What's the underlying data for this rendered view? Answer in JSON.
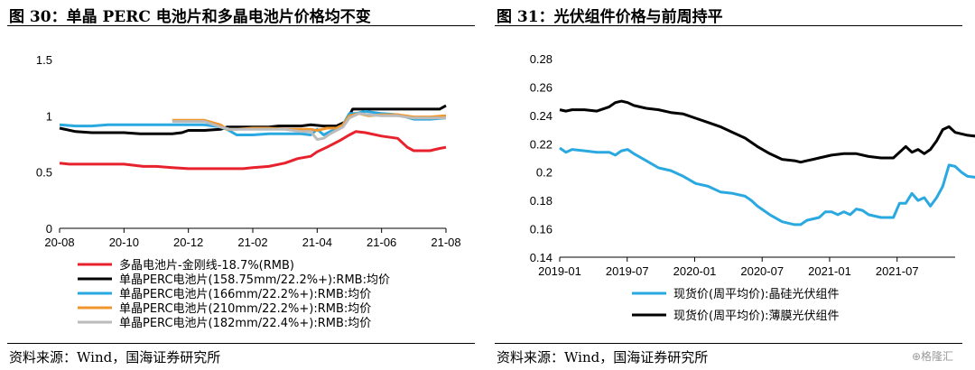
{
  "left": {
    "title": "图 30：单晶 PERC 电池片和多晶电池片价格均不变",
    "source": "资料来源：Wind，国海证券研究所",
    "chart_data": {
      "type": "line",
      "ylim": [
        0,
        1.5
      ],
      "yticks": [
        "0",
        "0.5",
        "1",
        "1.5"
      ],
      "xticks": [
        "20-08",
        "20-10",
        "20-12",
        "21-02",
        "21-04",
        "21-06",
        "21-08"
      ],
      "xlim": [
        0,
        12
      ],
      "series": [
        {
          "name": "多晶电池片-金刚线-18.7%(RMB)",
          "color": "#e8222c",
          "points": [
            [
              0,
              0.58
            ],
            [
              0.3,
              0.57
            ],
            [
              1,
              0.57
            ],
            [
              2,
              0.57
            ],
            [
              2.6,
              0.55
            ],
            [
              3,
              0.55
            ],
            [
              3.5,
              0.54
            ],
            [
              4,
              0.53
            ],
            [
              5,
              0.53
            ],
            [
              5.7,
              0.53
            ],
            [
              6,
              0.54
            ],
            [
              6.5,
              0.55
            ],
            [
              7,
              0.58
            ],
            [
              7.4,
              0.62
            ],
            [
              7.8,
              0.64
            ],
            [
              8,
              0.68
            ],
            [
              8.3,
              0.72
            ],
            [
              8.7,
              0.78
            ],
            [
              9,
              0.83
            ],
            [
              9.2,
              0.86
            ],
            [
              9.5,
              0.85
            ],
            [
              10,
              0.82
            ],
            [
              10.5,
              0.8
            ],
            [
              10.8,
              0.72
            ],
            [
              11,
              0.69
            ],
            [
              11.5,
              0.69
            ],
            [
              11.8,
              0.71
            ],
            [
              12,
              0.72
            ]
          ]
        },
        {
          "name": "单晶PERC电池片(158.75mm/22.2%+):RMB:均价",
          "color": "#000000",
          "points": [
            [
              0,
              0.89
            ],
            [
              0.5,
              0.86
            ],
            [
              1,
              0.85
            ],
            [
              2,
              0.85
            ],
            [
              2.5,
              0.84
            ],
            [
              3,
              0.84
            ],
            [
              3.5,
              0.84
            ],
            [
              3.8,
              0.85
            ],
            [
              4,
              0.87
            ],
            [
              4.5,
              0.87
            ],
            [
              5,
              0.88
            ],
            [
              5.2,
              0.9
            ],
            [
              6,
              0.9
            ],
            [
              6.5,
              0.9
            ],
            [
              6.8,
              0.91
            ],
            [
              7.5,
              0.91
            ],
            [
              7.8,
              0.92
            ],
            [
              8.2,
              0.91
            ],
            [
              8.6,
              0.91
            ],
            [
              8.9,
              0.95
            ],
            [
              9.1,
              1.06
            ],
            [
              9.4,
              1.06
            ],
            [
              10,
              1.06
            ],
            [
              11,
              1.06
            ],
            [
              11.5,
              1.06
            ],
            [
              11.8,
              1.06
            ],
            [
              12,
              1.09
            ]
          ]
        },
        {
          "name": "单晶PERC电池片(166mm/22.2%+):RMB:均价",
          "color": "#2aa8e0",
          "points": [
            [
              0,
              0.92
            ],
            [
              0.5,
              0.91
            ],
            [
              1,
              0.91
            ],
            [
              1.5,
              0.92
            ],
            [
              2,
              0.92
            ],
            [
              3,
              0.92
            ],
            [
              4,
              0.92
            ],
            [
              4.5,
              0.92
            ],
            [
              5,
              0.9
            ],
            [
              5.2,
              0.88
            ],
            [
              5.5,
              0.83
            ],
            [
              6,
              0.83
            ],
            [
              6.5,
              0.84
            ],
            [
              7,
              0.84
            ],
            [
              7.5,
              0.84
            ],
            [
              7.8,
              0.83
            ],
            [
              8,
              0.88
            ],
            [
              8.2,
              0.83
            ],
            [
              8.4,
              0.86
            ],
            [
              8.6,
              0.88
            ],
            [
              8.8,
              0.92
            ],
            [
              9,
              1.02
            ],
            [
              9.2,
              1.02
            ],
            [
              9.5,
              1.04
            ],
            [
              10,
              1.02
            ],
            [
              10.5,
              1.01
            ],
            [
              11,
              0.97
            ],
            [
              11.5,
              0.97
            ],
            [
              12,
              0.98
            ]
          ]
        },
        {
          "name": "单晶PERC电池片(210mm/22.2%+):RMB:均价",
          "color": "#f0962f",
          "points": [
            [
              3.5,
              0.96
            ],
            [
              4,
              0.96
            ],
            [
              4.5,
              0.96
            ],
            [
              5,
              0.92
            ],
            [
              5.2,
              0.88
            ],
            [
              5.5,
              0.88
            ],
            [
              6,
              0.89
            ],
            [
              6.5,
              0.89
            ],
            [
              7,
              0.88
            ],
            [
              7.5,
              0.88
            ],
            [
              7.8,
              0.88
            ],
            [
              8,
              0.87
            ],
            [
              8.3,
              0.89
            ],
            [
              8.6,
              0.89
            ],
            [
              8.8,
              0.92
            ],
            [
              9,
              1.0
            ],
            [
              9.3,
              1.02
            ],
            [
              9.6,
              1.0
            ],
            [
              10,
              1.01
            ],
            [
              10.5,
              1.01
            ],
            [
              11,
              0.99
            ],
            [
              11.5,
              0.99
            ],
            [
              12,
              1.0
            ]
          ]
        },
        {
          "name": "单晶PERC电池片(182mm/22.4%+):RMB:均价",
          "color": "#bbbbbb",
          "points": [
            [
              3.5,
              0.95
            ],
            [
              4,
              0.95
            ],
            [
              4.5,
              0.95
            ],
            [
              5,
              0.9
            ],
            [
              5.3,
              0.88
            ],
            [
              5.5,
              0.88
            ],
            [
              6,
              0.88
            ],
            [
              6.5,
              0.88
            ],
            [
              7,
              0.88
            ],
            [
              7.5,
              0.86
            ],
            [
              7.8,
              0.86
            ],
            [
              8,
              0.79
            ],
            [
              8.2,
              0.8
            ],
            [
              8.4,
              0.84
            ],
            [
              8.6,
              0.87
            ],
            [
              8.8,
              0.9
            ],
            [
              9,
              0.98
            ],
            [
              9.3,
              1.02
            ],
            [
              9.6,
              1.01
            ],
            [
              10,
              1.0
            ],
            [
              10.5,
              1.0
            ],
            [
              11,
              0.98
            ],
            [
              11.5,
              0.98
            ],
            [
              12,
              0.98
            ]
          ]
        }
      ]
    }
  },
  "right": {
    "title": "图 31：光伏组件价格与前周持平",
    "source": "资料来源：Wind，国海证券研究所",
    "chart_data": {
      "type": "line",
      "ylim": [
        0.14,
        0.28
      ],
      "yticks": [
        "0.14",
        "0.16",
        "0.18",
        "0.2",
        "0.22",
        "0.24",
        "0.26",
        "0.28"
      ],
      "xticks": [
        "2019-01",
        "2019-07",
        "2020-01",
        "2020-07",
        "2021-01",
        "2021-07"
      ],
      "xlim": [
        0,
        32
      ],
      "series": [
        {
          "name": "现货价(周平均价):晶硅光伏组件",
          "color": "#2aa8e0",
          "points": [
            [
              0,
              0.217
            ],
            [
              0.5,
              0.214
            ],
            [
              1,
              0.216
            ],
            [
              2,
              0.215
            ],
            [
              3,
              0.214
            ],
            [
              4,
              0.214
            ],
            [
              4.5,
              0.212
            ],
            [
              5,
              0.215
            ],
            [
              5.5,
              0.216
            ],
            [
              6,
              0.213
            ],
            [
              7,
              0.208
            ],
            [
              8,
              0.203
            ],
            [
              9,
              0.201
            ],
            [
              10,
              0.197
            ],
            [
              11,
              0.192
            ],
            [
              12,
              0.19
            ],
            [
              13,
              0.186
            ],
            [
              14,
              0.185
            ],
            [
              15,
              0.183
            ],
            [
              15.5,
              0.18
            ],
            [
              16,
              0.176
            ],
            [
              17,
              0.17
            ],
            [
              18,
              0.165
            ],
            [
              19,
              0.163
            ],
            [
              19.5,
              0.163
            ],
            [
              20,
              0.166
            ],
            [
              21,
              0.168
            ],
            [
              21.5,
              0.172
            ],
            [
              22,
              0.172
            ],
            [
              22.5,
              0.17
            ],
            [
              23,
              0.172
            ],
            [
              23.5,
              0.17
            ],
            [
              24,
              0.174
            ],
            [
              24.5,
              0.173
            ],
            [
              25,
              0.17
            ],
            [
              26,
              0.168
            ],
            [
              27,
              0.168
            ],
            [
              27.5,
              0.178
            ],
            [
              28,
              0.178
            ],
            [
              28.5,
              0.185
            ],
            [
              29,
              0.18
            ],
            [
              29.5,
              0.182
            ],
            [
              30,
              0.176
            ],
            [
              30.5,
              0.182
            ],
            [
              31,
              0.19
            ],
            [
              31.5,
              0.205
            ],
            [
              32,
              0.204
            ],
            [
              32.5,
              0.2
            ],
            [
              33,
              0.197
            ],
            [
              34,
              0.196
            ],
            [
              35,
              0.196
            ]
          ]
        },
        {
          "name": "现货价(周平均价):薄膜光伏组件",
          "color": "#000000",
          "points": [
            [
              0,
              0.244
            ],
            [
              0.5,
              0.243
            ],
            [
              1,
              0.244
            ],
            [
              2,
              0.244
            ],
            [
              3,
              0.243
            ],
            [
              4,
              0.246
            ],
            [
              4.5,
              0.249
            ],
            [
              5,
              0.25
            ],
            [
              5.5,
              0.249
            ],
            [
              6,
              0.247
            ],
            [
              7,
              0.245
            ],
            [
              8,
              0.244
            ],
            [
              9,
              0.242
            ],
            [
              10,
              0.241
            ],
            [
              11,
              0.238
            ],
            [
              12,
              0.235
            ],
            [
              13,
              0.232
            ],
            [
              14,
              0.228
            ],
            [
              15,
              0.224
            ],
            [
              16,
              0.218
            ],
            [
              17,
              0.213
            ],
            [
              18,
              0.209
            ],
            [
              19,
              0.208
            ],
            [
              19.5,
              0.207
            ],
            [
              20,
              0.208
            ],
            [
              20.5,
              0.209
            ],
            [
              21,
              0.21
            ],
            [
              22,
              0.212
            ],
            [
              23,
              0.213
            ],
            [
              24,
              0.213
            ],
            [
              25,
              0.211
            ],
            [
              26,
              0.21
            ],
            [
              27,
              0.21
            ],
            [
              27.5,
              0.214
            ],
            [
              28,
              0.218
            ],
            [
              28.5,
              0.214
            ],
            [
              29,
              0.216
            ],
            [
              29.5,
              0.213
            ],
            [
              30,
              0.216
            ],
            [
              30.5,
              0.222
            ],
            [
              31,
              0.23
            ],
            [
              31.5,
              0.232
            ],
            [
              32,
              0.228
            ],
            [
              33,
              0.226
            ],
            [
              34,
              0.225
            ],
            [
              35,
              0.225
            ]
          ]
        }
      ]
    }
  },
  "watermark": "⊕格隆汇"
}
